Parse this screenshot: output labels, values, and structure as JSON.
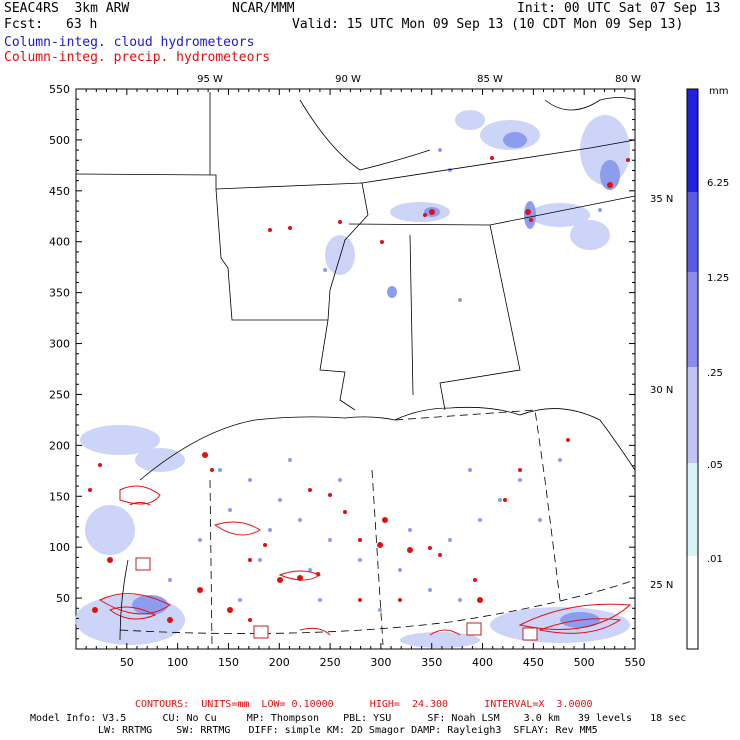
{
  "header": {
    "model": "SEAC4RS  3km ARW",
    "org": "NCAR/MMM",
    "init": "Init: 00 UTC Sat 07 Sep 13",
    "fcst_label": "Fcst:",
    "fcst_value": "63 h",
    "valid": "Valid: 15 UTC Mon 09 Sep 13 (10 CDT Mon 09 Sep 13)",
    "field_blue": "Column-integ. cloud hydrometeors",
    "field_red": "Column-integ. precip. hydrometeors"
  },
  "axes": {
    "x_ticks": [
      "50",
      "100",
      "150",
      "200",
      "250",
      "300",
      "350",
      "400",
      "450",
      "500",
      "550"
    ],
    "y_ticks": [
      "50",
      "100",
      "150",
      "200",
      "250",
      "300",
      "350",
      "400",
      "450",
      "500",
      "550"
    ],
    "lon_labels": [
      "95 W",
      "90 W",
      "85 W",
      "80 W"
    ],
    "lat_labels": [
      "35 N",
      "30 N",
      "25 N"
    ]
  },
  "colorbar": {
    "unit": "mm",
    "labels": [
      "6.25",
      "1.25",
      ".25",
      ".05",
      ".01"
    ],
    "colors": [
      "#2020e0",
      "#5a5ae8",
      "#8c8cf0",
      "#bfc4f5",
      "#d8f3f8",
      "#ffffff"
    ]
  },
  "footer": {
    "contours": "CONTOURS:  UNITS=mm  LOW= 0.10000      HIGH=  24.300      INTERVAL=X  3.0000",
    "info1": "Model Info: V3.5      CU: No Cu     MP: Thompson    PBL: YSU      SF: Noah LSM    3.0 km   39 levels   18 sec",
    "info2": "LW: RRTMG    SW: RRTMG   DIFF: simple KM: 2D Smagor DAMP: Rayleigh3  SFLAY: Rev MM5"
  },
  "colors": {
    "cloud": "#1a1ad0",
    "precip": "#e01010"
  }
}
